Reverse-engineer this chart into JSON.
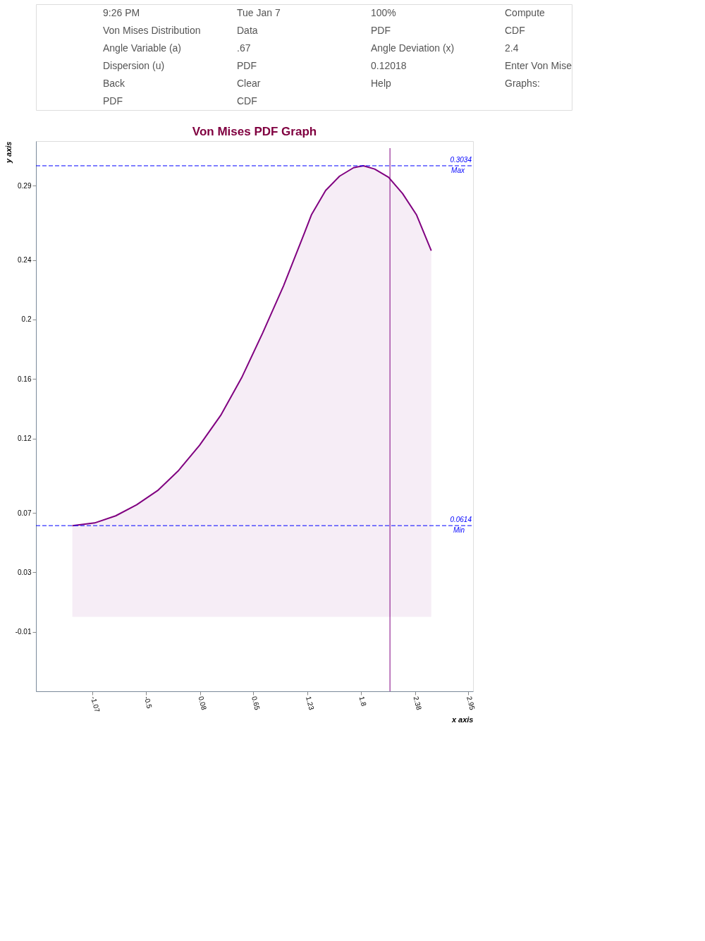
{
  "chart_data": {
    "type": "area",
    "title": "Von Mises PDF Graph",
    "xlabel": "x axis",
    "ylabel": "y axis",
    "x": [
      -1.287,
      -1.048,
      -0.823,
      -0.599,
      -0.374,
      -0.15,
      0.075,
      0.3,
      0.524,
      0.749,
      0.973,
      1.198,
      1.273,
      1.423,
      1.572,
      1.722,
      1.827,
      1.947,
      2.097,
      2.246,
      2.396,
      2.553
    ],
    "series": [
      {
        "color": "#800080",
        "values": [
          0.0614,
          0.0632,
          0.068,
          0.0754,
          0.085,
          0.0985,
          0.1155,
          0.1355,
          0.1608,
          0.1909,
          0.2227,
          0.2585,
          0.2707,
          0.2868,
          0.2964,
          0.3021,
          0.3034,
          0.3012,
          0.2956,
          0.2847,
          0.2703,
          0.2463
        ]
      }
    ],
    "xlim": [
      -1.676,
      3.0
    ],
    "xticks": [
      -1.07,
      -0.5,
      0.08,
      0.65,
      1.23,
      1.8,
      2.38,
      2.95
    ],
    "ylim": [
      -0.05,
      0.32
    ],
    "yticks": [
      0.29,
      0.24,
      0.2,
      0.16,
      0.12,
      0.07,
      0.03,
      -0.01
    ],
    "grid": false,
    "ref_lines": [
      {
        "axis": "y",
        "value": 0.3034,
        "label": "0.3034",
        "color": "#0000ff",
        "line_style": "dashed"
      },
      {
        "axis": "y",
        "value": 0.0614,
        "label": "0.0614",
        "color": "#0000ff",
        "line_style": "dashed"
      },
      {
        "axis": "x",
        "value": 2.111,
        "color": "#800080",
        "line_style": "solid"
      }
    ],
    "annotations": [
      {
        "text": "Max",
        "y": 0.3034
      },
      {
        "text": "Min",
        "y": 0.0614
      },
      "9:26 PM",
      "Tue Jan 7",
      "100%",
      "Compute",
      "Von Mises Distribution",
      "Data",
      "PDF",
      "CDF",
      "Angle Variable (a)",
      ".67",
      "Angle Deviation (x)",
      "2.4",
      "Dispersion (u)",
      "PDF",
      "0.12018",
      "Enter Von Mise",
      "Back",
      "Clear",
      "Help",
      "Graphs:",
      "PDF",
      "CDF"
    ]
  }
}
